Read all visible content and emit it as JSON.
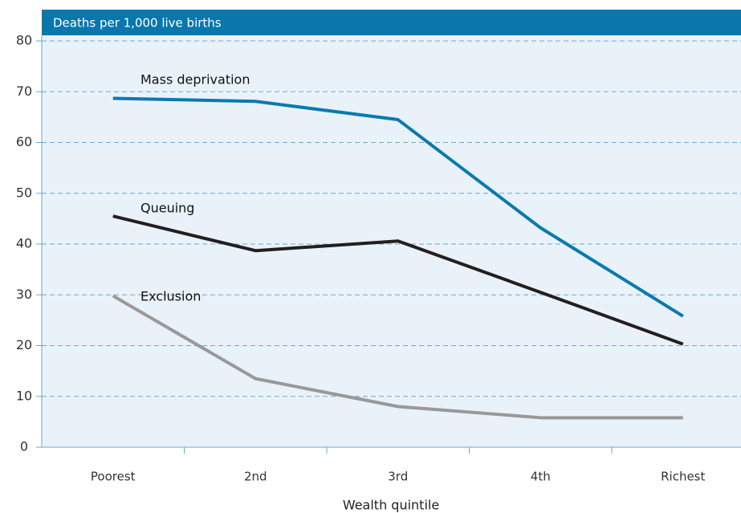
{
  "chart_data": {
    "type": "line",
    "title": "Deaths per 1,000 live births",
    "x_label": "Wealth quintile",
    "categories": [
      "Poorest",
      "2nd",
      "3rd",
      "4th",
      "Richest"
    ],
    "series": [
      {
        "name": "Mass deprivation",
        "color": "#0a7ab0",
        "values": [
          68.7,
          68.1,
          64.5,
          43.2,
          25.8
        ]
      },
      {
        "name": "Queuing",
        "color": "#231f20",
        "values": [
          45.5,
          38.7,
          40.6,
          30.5,
          20.3
        ]
      },
      {
        "name": "Exclusion",
        "color": "#999999",
        "values": [
          29.8,
          13.5,
          8.0,
          5.8,
          5.8
        ]
      }
    ],
    "ylim": [
      0,
      80
    ],
    "yticks": [
      0,
      10,
      20,
      30,
      40,
      50,
      60,
      70,
      80
    ],
    "grid": true
  }
}
